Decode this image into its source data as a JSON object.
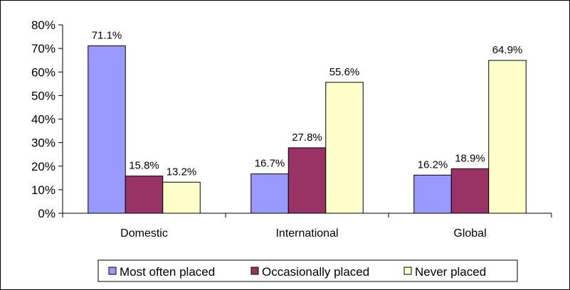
{
  "chart_data": {
    "type": "bar",
    "title": "",
    "xlabel": "",
    "ylabel": "",
    "categories": [
      "Domestic",
      "International",
      "Global"
    ],
    "series": [
      {
        "name": "Most often placed",
        "values": [
          71.1,
          16.7,
          16.2
        ],
        "labels": [
          "71.1%",
          "16.7%",
          "16.2%"
        ],
        "color": "#9999ff"
      },
      {
        "name": "Occasionally placed",
        "values": [
          15.8,
          27.8,
          18.9
        ],
        "labels": [
          "15.8%",
          "27.8%",
          "18.9%"
        ],
        "color": "#993366"
      },
      {
        "name": "Never placed",
        "values": [
          13.2,
          55.6,
          64.9
        ],
        "labels": [
          "13.2%",
          "55.6%",
          "64.9%"
        ],
        "color": "#ffffcc"
      }
    ],
    "ylim": [
      0,
      80
    ],
    "yticks": [
      0,
      10,
      20,
      30,
      40,
      50,
      60,
      70,
      80
    ],
    "ytick_labels": [
      "0%",
      "10%",
      "20%",
      "30%",
      "40%",
      "50%",
      "60%",
      "70%",
      "80%"
    ],
    "grid": false,
    "legend_position": "bottom"
  }
}
